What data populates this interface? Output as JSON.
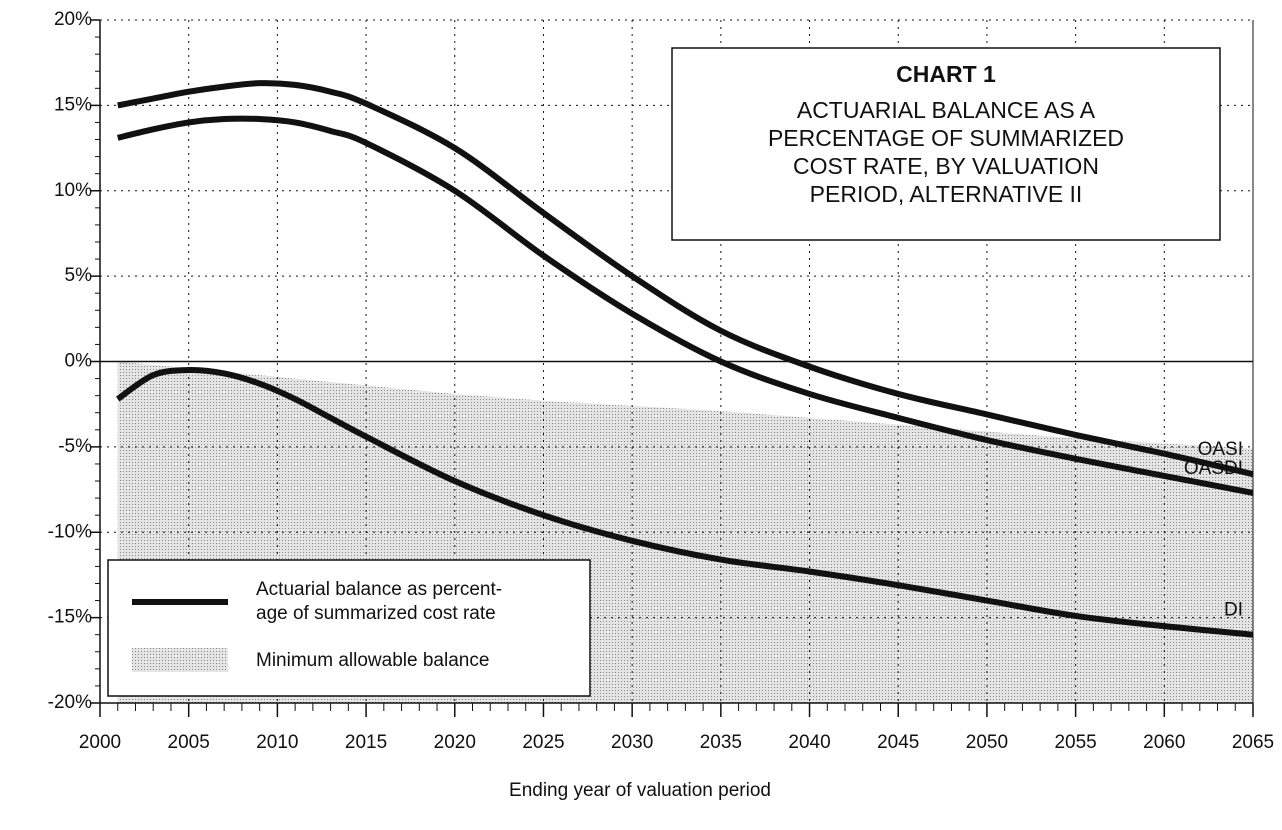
{
  "chart_data": {
    "type": "line",
    "title": "CHART 1",
    "subtitle": [
      "ACTUARIAL BALANCE AS A",
      "PERCENTAGE OF SUMMARIZED",
      "COST RATE, BY VALUATION",
      "PERIOD, ALTERNATIVE II"
    ],
    "x_label": "Ending year of valuation period",
    "x": [
      2001,
      2003,
      2005,
      2007,
      2009,
      2011,
      2013,
      2015,
      2020,
      2025,
      2030,
      2035,
      2040,
      2045,
      2050,
      2055,
      2060,
      2065
    ],
    "series": [
      {
        "name": "OASI",
        "color": "#111111",
        "values": [
          15.0,
          15.4,
          15.8,
          16.1,
          16.3,
          16.2,
          15.8,
          15.1,
          12.5,
          8.7,
          5.0,
          1.8,
          -0.3,
          -1.9,
          -3.1,
          -4.3,
          -5.4,
          -6.6
        ]
      },
      {
        "name": "OASDI",
        "color": "#111111",
        "values": [
          13.1,
          13.6,
          14.0,
          14.2,
          14.2,
          14.0,
          13.5,
          12.8,
          10.0,
          6.2,
          2.8,
          0.0,
          -1.9,
          -3.3,
          -4.6,
          -5.7,
          -6.7,
          -7.7
        ]
      },
      {
        "name": "DI",
        "color": "#111111",
        "values": [
          -2.2,
          -0.8,
          -0.5,
          -0.7,
          -1.3,
          -2.2,
          -3.3,
          -4.4,
          -7.0,
          -9.0,
          -10.5,
          -11.6,
          -12.3,
          -13.1,
          -14.0,
          -14.9,
          -15.5,
          -16.0
        ]
      }
    ],
    "area": {
      "name": "Minimum allowable balance",
      "color": "#d4d4d4",
      "values": [
        0.0,
        -0.2,
        -0.4,
        -0.6,
        -0.8,
        -1.0,
        -1.2,
        -1.4,
        -1.9,
        -2.3,
        -2.6,
        -2.9,
        -3.3,
        -3.7,
        -4.1,
        -4.5,
        -4.8,
        -5.1
      ]
    },
    "line_legend": [
      "Actuarial balance as percent-",
      "age of summarized cost rate"
    ],
    "xlim": [
      2000,
      2065
    ],
    "xticks": [
      2000,
      2005,
      2010,
      2015,
      2020,
      2025,
      2030,
      2035,
      2040,
      2045,
      2050,
      2055,
      2060,
      2065
    ],
    "ylim": [
      -20,
      20
    ],
    "yticks": [
      {
        "value": -20,
        "label": "-20%"
      },
      {
        "value": -15,
        "label": "-15%"
      },
      {
        "value": -10,
        "label": "-10%"
      },
      {
        "value": -5,
        "label": "-5%"
      },
      {
        "value": 0,
        "label": "0%"
      },
      {
        "value": 5,
        "label": "5%"
      },
      {
        "value": 10,
        "label": "10%"
      },
      {
        "value": 15,
        "label": "15%"
      },
      {
        "value": 20,
        "label": "20%"
      }
    ],
    "grid": true
  }
}
